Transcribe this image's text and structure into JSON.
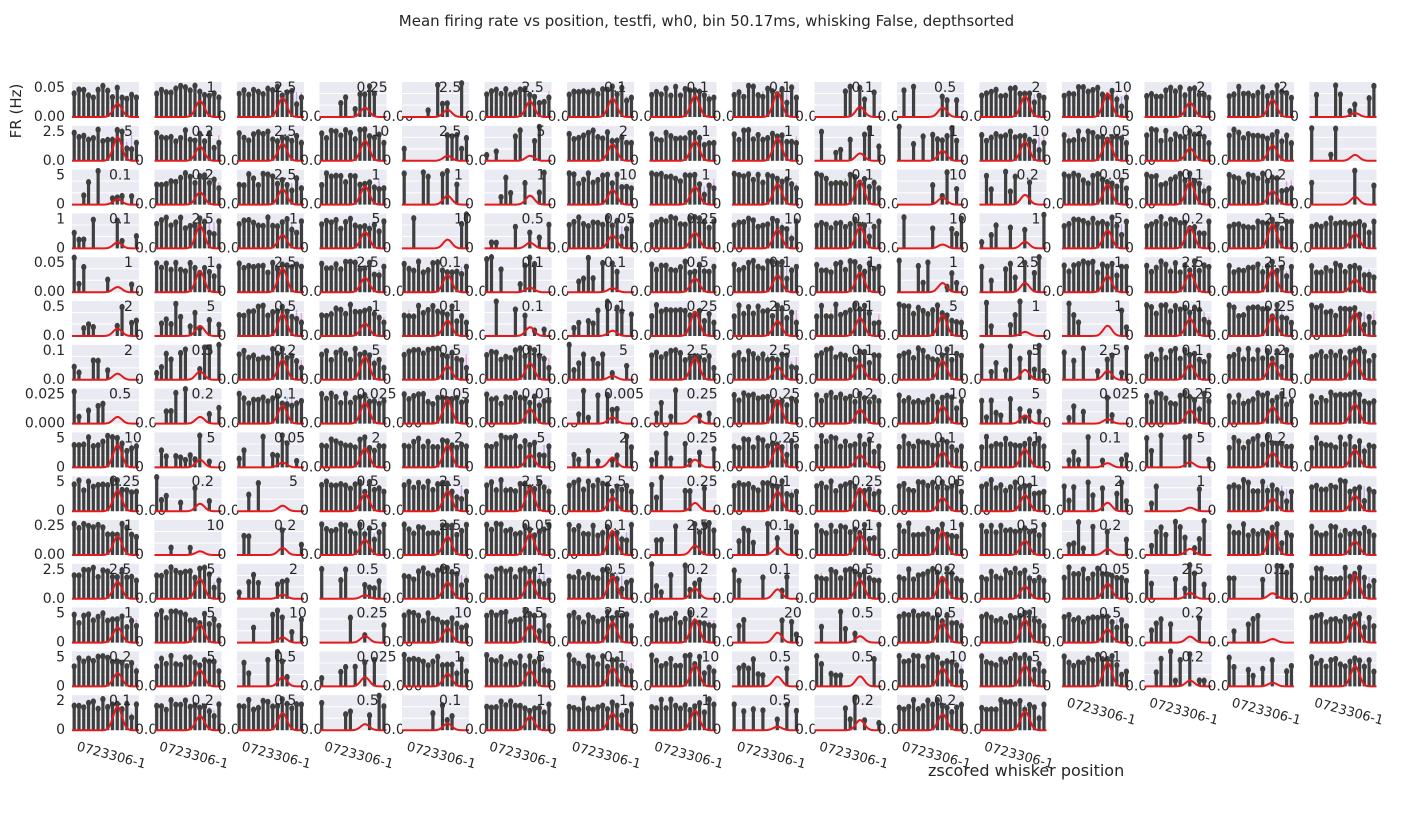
{
  "figure": {
    "title": "Mean firing rate vs position, testfi, wh0, bin 50.17ms, whisking False, depthsorted",
    "xlabel": "zscored whisker position",
    "ylabel": "FR (Hz)"
  },
  "colors": {
    "panel_background": "#eaeaf2",
    "gridline": "#ffffff",
    "bar": "#3f3f3f",
    "gaussian_curve": "#e31a1c",
    "stripe_palette": [
      "#f4a6b4",
      "#e8b77c",
      "#b5b86a",
      "#7fbf7b",
      "#6cc3a0",
      "#63c2c9",
      "#7eb6e8",
      "#c29bea",
      "#ef9ad6"
    ]
  },
  "chart_data": {
    "type": "bar",
    "layout": {
      "rows": 15,
      "cols": 16,
      "panels_drawn": 237
    },
    "xlabel": "zscored whisker position",
    "ylabel": "FR (Hz)",
    "x_tick_labels_bottom": "0723306-1",
    "left_axis_ticks": [
      [
        "0.05",
        "0.00"
      ],
      [
        "2.5",
        "0.0"
      ],
      [
        "5",
        "0"
      ],
      [
        "1",
        "0"
      ],
      [
        "0.05",
        "0.00"
      ],
      [
        "0.5",
        "0.0"
      ],
      [
        "0.1",
        "0.0"
      ],
      [
        "0.025",
        "0.000"
      ],
      [
        "5",
        "0"
      ],
      [
        "5",
        "0"
      ],
      [
        "0.25",
        "0.00"
      ],
      [
        "2.5",
        "0.0"
      ],
      [
        "5",
        "0"
      ],
      [
        "5",
        "0"
      ],
      [
        "2",
        "0"
      ]
    ],
    "right_tick_labels": [
      [
        null,
        [
          "1",
          "0"
        ],
        [
          "2.5",
          "0.0"
        ],
        [
          "0.25",
          "0.00"
        ],
        [
          "2.5",
          "0.0"
        ],
        [
          "2.5",
          "0.0"
        ],
        [
          "0.1",
          "0.0"
        ],
        [
          "0.1",
          "0.0"
        ],
        [
          "0.1",
          "0.0"
        ],
        [
          "0.1",
          "0.0"
        ],
        [
          "0.5",
          "0.0"
        ],
        [
          "2",
          "0"
        ],
        [
          "10",
          "0"
        ],
        [
          "2",
          "0"
        ],
        [
          "2",
          "0"
        ],
        null
      ],
      [
        [
          "5",
          "0"
        ],
        [
          "0.2",
          "0.0"
        ],
        [
          "2.5",
          "0.0"
        ],
        [
          "10",
          "0"
        ],
        [
          "2.5",
          "0.0"
        ],
        [
          "5",
          "0"
        ],
        [
          "2",
          "0"
        ],
        [
          "1",
          "0"
        ],
        [
          "1",
          "0"
        ],
        [
          "1",
          "0"
        ],
        [
          "1",
          "0"
        ],
        [
          "10",
          "0"
        ],
        [
          "0.05",
          "0.00"
        ],
        [
          "0.2",
          "0.0"
        ],
        null,
        null
      ],
      [
        [
          "0.1",
          "0.0"
        ],
        [
          "0.2",
          "0.0"
        ],
        [
          "2.5",
          "0.0"
        ],
        [
          "1",
          "0"
        ],
        [
          "1",
          "0"
        ],
        [
          "1",
          "0"
        ],
        [
          "10",
          "0"
        ],
        [
          "1",
          "0"
        ],
        [
          "1",
          "0"
        ],
        [
          "0.1",
          "0.0"
        ],
        [
          "10",
          "0"
        ],
        [
          "0.2",
          "0.0"
        ],
        [
          "0.05",
          "0.00"
        ],
        [
          "0.1",
          "0.0"
        ],
        [
          "0.2",
          "0.0"
        ],
        null
      ],
      [
        [
          "0.1",
          "0.0"
        ],
        [
          "2.5",
          "0.0"
        ],
        [
          "1",
          "0"
        ],
        [
          "5",
          "0"
        ],
        [
          "10",
          "0"
        ],
        [
          "0.5",
          "0.0"
        ],
        [
          "0.05",
          "0.00"
        ],
        [
          "0.25",
          "0.00"
        ],
        [
          "10",
          "0"
        ],
        [
          "0.1",
          "0.0"
        ],
        [
          "10",
          "0"
        ],
        [
          "1",
          "0"
        ],
        [
          "5",
          "0"
        ],
        [
          "0.2",
          "0.0"
        ],
        [
          "2.5",
          "0.0"
        ],
        null
      ],
      [
        [
          "1",
          "0"
        ],
        [
          "1",
          "0"
        ],
        [
          "2.5",
          "0.0"
        ],
        [
          "2.5",
          "0.0"
        ],
        [
          "0.1",
          "0.0"
        ],
        [
          "0.1",
          "0.0"
        ],
        [
          "0.1",
          "0.0"
        ],
        [
          "0.5",
          "0.0"
        ],
        [
          "0.1",
          "0.0"
        ],
        [
          "1",
          "0"
        ],
        [
          "1",
          "0"
        ],
        [
          "2.5",
          "0.0"
        ],
        [
          "1",
          "0"
        ],
        [
          "2.5",
          "0.0"
        ],
        [
          "2.5",
          "0.0"
        ],
        null
      ],
      [
        [
          "2",
          "0"
        ],
        [
          "5",
          "0"
        ],
        [
          "0.5",
          "0.0"
        ],
        [
          "1",
          "0"
        ],
        [
          "0.1",
          "0.0"
        ],
        [
          "0.1",
          "0.0"
        ],
        [
          "0.1",
          "0.0"
        ],
        [
          "0.25",
          "0.00"
        ],
        [
          "2.5",
          "0.0"
        ],
        [
          "0.1",
          "0.0"
        ],
        [
          "5",
          "0"
        ],
        [
          "1",
          "0"
        ],
        [
          "1",
          "0"
        ],
        [
          "0.1",
          "0.0"
        ],
        [
          "0.25",
          "0.00"
        ],
        null
      ],
      [
        [
          "2",
          "0"
        ],
        [
          "0.5",
          "0.0"
        ],
        [
          "0.2",
          "0.0"
        ],
        [
          "5",
          "0"
        ],
        [
          "0.5",
          "0.0"
        ],
        [
          "0.1",
          "0.0"
        ],
        [
          "5",
          "0"
        ],
        [
          "2.5",
          "0.0"
        ],
        [
          "2.5",
          "0.0"
        ],
        [
          "0.1",
          "0.0"
        ],
        [
          "0.1",
          "0.0"
        ],
        [
          "5",
          "0"
        ],
        [
          "2.5",
          "0.0"
        ],
        [
          "0.1",
          "0.0"
        ],
        [
          "0.2",
          "0.0"
        ],
        null
      ],
      [
        [
          "0.5",
          "0.0"
        ],
        [
          "0.2",
          "0.0"
        ],
        [
          "0.1",
          "0.0"
        ],
        [
          "0.025",
          "0.000"
        ],
        [
          "0.05",
          "0.00"
        ],
        [
          "0.01",
          "0.00"
        ],
        [
          "0.005",
          "0.000"
        ],
        [
          "0.25",
          "0.00"
        ],
        [
          "0.25",
          "0.00"
        ],
        [
          "0.2",
          "0.0"
        ],
        [
          "10",
          "0"
        ],
        [
          "5",
          "0"
        ],
        [
          "0.025",
          "0.000"
        ],
        [
          "0.25",
          "0.00"
        ],
        [
          "10",
          "0"
        ],
        null
      ],
      [
        [
          "10",
          "0"
        ],
        [
          "5",
          "0"
        ],
        [
          "0.05",
          "0.00"
        ],
        [
          "2",
          "0"
        ],
        [
          "2",
          "0"
        ],
        [
          "5",
          "0"
        ],
        [
          "2",
          "0"
        ],
        [
          "0.25",
          "0.00"
        ],
        [
          "0.25",
          "0.00"
        ],
        [
          "2",
          "0"
        ],
        [
          "0.1",
          "0.0"
        ],
        [
          "1",
          "0"
        ],
        [
          "0.1",
          "0.0"
        ],
        [
          "5",
          "0"
        ],
        [
          "0.2",
          "0.0"
        ],
        null
      ],
      [
        [
          "0.25",
          "0.00"
        ],
        [
          "0.2",
          "0.0"
        ],
        [
          "5",
          "0"
        ],
        [
          "0.5",
          "0.0"
        ],
        [
          "2.5",
          "0.0"
        ],
        [
          "2.5",
          "0.0"
        ],
        [
          "2.5",
          "0.0"
        ],
        [
          "0.25",
          "0.00"
        ],
        [
          "0.1",
          "0.0"
        ],
        [
          "0.25",
          "0.00"
        ],
        [
          "0.05",
          "0.00"
        ],
        [
          "0.1",
          "0.0"
        ],
        [
          "2",
          "0"
        ],
        [
          "1",
          "0"
        ],
        null,
        null
      ],
      [
        [
          "1",
          "0"
        ],
        [
          "10",
          "0"
        ],
        [
          "0.2",
          "0.0"
        ],
        [
          "0.5",
          "0.0"
        ],
        [
          "2.5",
          "0.0"
        ],
        [
          "0.05",
          "0.00"
        ],
        [
          "0.1",
          "0.0"
        ],
        [
          "2.5",
          "0.0"
        ],
        [
          "0.1",
          "0.0"
        ],
        [
          "0.1",
          "0.0"
        ],
        [
          "1",
          "0"
        ],
        [
          "0.5",
          "0.0"
        ],
        [
          "0.2",
          "0.0"
        ],
        null,
        null,
        null
      ],
      [
        [
          "2.5",
          "0.0"
        ],
        [
          "5",
          "0"
        ],
        [
          "2",
          "0"
        ],
        [
          "0.5",
          "0.0"
        ],
        [
          "0.5",
          "0.0"
        ],
        [
          "1",
          "0"
        ],
        [
          "0.5",
          "0.0"
        ],
        [
          "0.2",
          "0.0"
        ],
        [
          "0.1",
          "0.0"
        ],
        [
          "0.5",
          "0.0"
        ],
        [
          "0.2",
          "0.0"
        ],
        [
          "5",
          "0"
        ],
        [
          "0.05",
          "0.00"
        ],
        [
          "2.5",
          "0.0"
        ],
        [
          "0.1",
          "0.0"
        ],
        null
      ],
      [
        [
          "1",
          "0"
        ],
        [
          "5",
          "0"
        ],
        [
          "10",
          "0"
        ],
        [
          "0.25",
          "0.00"
        ],
        [
          "10",
          "0"
        ],
        [
          "2.5",
          "0.0"
        ],
        [
          "2.5",
          "0.0"
        ],
        [
          "0.2",
          "0.0"
        ],
        [
          "20",
          "0"
        ],
        [
          "0.5",
          "0.0"
        ],
        [
          "0.5",
          "0.0"
        ],
        [
          "0.1",
          "0.0"
        ],
        [
          "0.5",
          "0.0"
        ],
        [
          "0.2",
          "0.0"
        ],
        null,
        null
      ],
      [
        [
          "0.2",
          "0.0"
        ],
        [
          "5",
          "0"
        ],
        [
          "0.5",
          "0.0"
        ],
        [
          "0.025",
          "0.000"
        ],
        [
          "1",
          "0"
        ],
        [
          "5",
          "0"
        ],
        [
          "0.1",
          "0.0"
        ],
        [
          "10",
          "0"
        ],
        [
          "0.5",
          "0.0"
        ],
        [
          "0.5",
          "0.0"
        ],
        [
          "10",
          "0"
        ],
        [
          "5",
          "0"
        ],
        [
          "0.1",
          "0.0"
        ],
        [
          "0.2",
          "0.0"
        ],
        null,
        null
      ],
      [
        [
          "0.1",
          "0.0"
        ],
        [
          "0.2",
          "0.0"
        ],
        [
          "0.5",
          "0.0"
        ],
        [
          "0.5",
          "0.0"
        ],
        [
          "0.1",
          "0.0"
        ],
        [
          "1",
          "0"
        ],
        [
          "1",
          "0"
        ],
        [
          "1",
          "0"
        ],
        [
          "0.5",
          "0.0"
        ],
        [
          "0.2",
          "0.0"
        ],
        [
          "0.2",
          "0.0"
        ],
        null,
        null,
        null,
        null,
        null
      ]
    ]
  }
}
